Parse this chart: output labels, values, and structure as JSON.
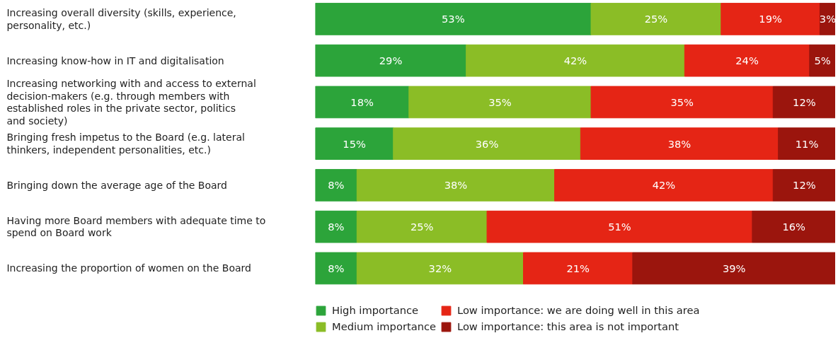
{
  "chart_data": {
    "type": "bar",
    "orientation": "horizontal",
    "stacked": true,
    "tick_labels": "y",
    "legend": "bottom",
    "categories": [
      "Increasing overall diversity (skills, experience, personality, etc.)",
      "Increasing know-how in IT and digitalisation",
      "Increasing networking with and access to external decision-makers (e.g. through members with established roles in the private sector, politics and society)",
      "Bringing fresh impetus to the Board (e.g. lateral thinkers, independent personalities, etc.)",
      "Bringing down the average age of the Board",
      "Having more Board members with adequate time to spend on Board work",
      "Increasing the proportion of women on the Board"
    ],
    "series": [
      {
        "name": "High importance",
        "color": "#2ca43a",
        "values": [
          53,
          29,
          18,
          15,
          8,
          8,
          8
        ],
        "value_labels": [
          "53%",
          "29%",
          "18%",
          "15%",
          "8%",
          "8%",
          "8%"
        ]
      },
      {
        "name": "Medium importance",
        "color": "#8bbd26",
        "values": [
          25,
          42,
          35,
          36,
          38,
          25,
          32
        ],
        "value_labels": [
          "25%",
          "42%",
          "35%",
          "36%",
          "38%",
          "25%",
          "32%"
        ]
      },
      {
        "name": "Low importance: we are doing well in this area",
        "color": "#e52515",
        "values": [
          19,
          24,
          35,
          38,
          42,
          51,
          21
        ],
        "value_labels": [
          "19%",
          "24%",
          "35%",
          "38%",
          "42%",
          "51%",
          "21%"
        ]
      },
      {
        "name": "Low importance: this area is not important",
        "color": "#9b150d",
        "values": [
          3,
          5,
          12,
          11,
          12,
          16,
          39
        ],
        "value_labels": [
          "3%",
          "5%",
          "12%",
          "11%",
          "12%",
          "16%",
          "39%"
        ]
      }
    ]
  }
}
